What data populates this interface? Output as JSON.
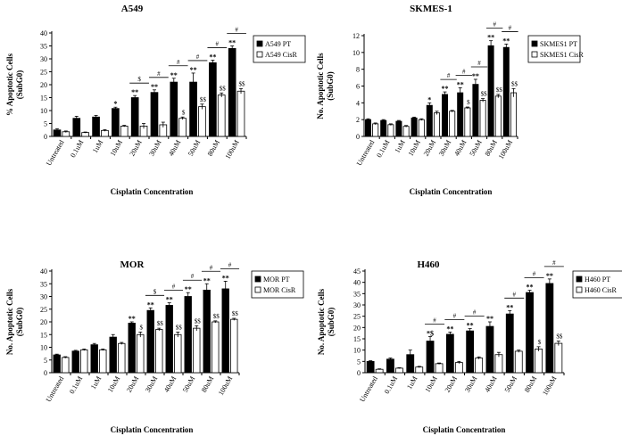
{
  "chart_data": [
    {
      "type": "bar",
      "title": "A549",
      "xlabel": "Cisplatin Concentration",
      "ylabel": "% Apoptotic Cells (SubG0)",
      "ylim": [
        0,
        40
      ],
      "yticks": [
        0,
        5,
        10,
        15,
        20,
        25,
        30,
        35,
        40
      ],
      "categories": [
        "Untreated",
        "0.1uM",
        "1uM",
        "10uM",
        "20uM",
        "30uM",
        "40uM",
        "50uM",
        "80uM",
        "100uM"
      ],
      "series": [
        {
          "name": "A549 PT",
          "color": "#000000",
          "values": [
            2.5,
            7,
            7.5,
            10.8,
            15,
            17,
            21,
            21,
            28.5,
            34
          ],
          "errors": [
            0.5,
            0.8,
            0.6,
            0.5,
            0.8,
            1,
            1.5,
            3.5,
            1,
            1
          ]
        },
        {
          "name": "A549 CisR",
          "color": "#ffffff",
          "values": [
            1.8,
            1.5,
            2.3,
            4,
            4,
            4.5,
            7,
            11.5,
            16,
            17.5
          ],
          "errors": [
            0.3,
            0.2,
            0.3,
            0.3,
            1,
            1,
            0.5,
            1,
            0.8,
            1
          ]
        }
      ],
      "annotations": [
        {
          "category": "10uM",
          "above_pt": [
            "*"
          ],
          "above_cisr": [],
          "hash": false
        },
        {
          "category": "20uM",
          "above_pt": [
            "**"
          ],
          "above_cisr": [],
          "hash": true,
          "hash_symbol": "$"
        },
        {
          "category": "30uM",
          "above_pt": [
            "**"
          ],
          "above_cisr": [],
          "hash": true,
          "hash_symbol": "#"
        },
        {
          "category": "40uM",
          "above_pt": [
            "**"
          ],
          "above_cisr": [
            "$"
          ],
          "hash": true,
          "hash_symbol": "#"
        },
        {
          "category": "50uM",
          "above_pt": [
            "**"
          ],
          "above_cisr": [
            "$$"
          ],
          "hash": true,
          "hash_symbol": "#"
        },
        {
          "category": "80uM",
          "above_pt": [
            "**"
          ],
          "above_cisr": [
            "$$"
          ],
          "hash": true,
          "hash_symbol": "#"
        },
        {
          "category": "100uM",
          "above_pt": [
            "**"
          ],
          "above_cisr": [
            "$$"
          ],
          "hash": true,
          "hash_symbol": "#"
        }
      ]
    },
    {
      "type": "bar",
      "title": "SKMES-1",
      "xlabel": "Cisplatin Concentration",
      "ylabel": "No. Apoptotic Cells (SubG0)",
      "ylim": [
        0,
        12
      ],
      "yticks": [
        0,
        2,
        4,
        6,
        8,
        10,
        12
      ],
      "categories": [
        "Untreated",
        "0.1uM",
        "1uM",
        "10uM",
        "20uM",
        "30uM",
        "40uM",
        "50uM",
        "80uM",
        "100uM"
      ],
      "series": [
        {
          "name": "SKMES1 PT",
          "color": "#000000",
          "values": [
            2,
            1.9,
            1.8,
            2.2,
            3.7,
            5,
            5.2,
            6.2,
            10.8,
            10.6
          ],
          "errors": [
            0.1,
            0.1,
            0.1,
            0.1,
            0.3,
            0.3,
            0.6,
            0.6,
            0.6,
            0.4
          ]
        },
        {
          "name": "SKMES1 CisR",
          "color": "#ffffff",
          "values": [
            1.5,
            1.4,
            1.2,
            2,
            2.8,
            3,
            3.4,
            4.3,
            4.8,
            5.2
          ],
          "errors": [
            0.1,
            0.1,
            0.1,
            0.1,
            0.2,
            0.1,
            0.1,
            0.2,
            0.2,
            0.5
          ]
        }
      ],
      "annotations": [
        {
          "category": "20uM",
          "above_pt": [
            "*"
          ],
          "above_cisr": [],
          "hash": false
        },
        {
          "category": "30uM",
          "above_pt": [
            "**"
          ],
          "above_cisr": [],
          "hash": true,
          "hash_symbol": "#"
        },
        {
          "category": "40uM",
          "above_pt": [
            "**"
          ],
          "above_cisr": [
            "$"
          ],
          "hash": true,
          "hash_symbol": "#"
        },
        {
          "category": "50uM",
          "above_pt": [
            "**"
          ],
          "above_cisr": [
            "$$"
          ],
          "hash": true,
          "hash_symbol": "#"
        },
        {
          "category": "80uM",
          "above_pt": [
            "**"
          ],
          "above_cisr": [
            "$$"
          ],
          "hash": true,
          "hash_symbol": "#"
        },
        {
          "category": "100uM",
          "above_pt": [
            "**"
          ],
          "above_cisr": [
            "$$"
          ],
          "hash": true,
          "hash_symbol": "#"
        }
      ]
    },
    {
      "type": "bar",
      "title": "MOR",
      "xlabel": "Cisplatin Concentration",
      "ylabel": "No. Apoptotic Cells (SubG0)",
      "ylim": [
        0,
        40
      ],
      "yticks": [
        0,
        5,
        10,
        15,
        20,
        25,
        30,
        35,
        40
      ],
      "categories": [
        "Untreated",
        "0.1uM",
        "1uM",
        "10uM",
        "20uM",
        "30uM",
        "40uM",
        "50uM",
        "80uM",
        "100uM"
      ],
      "series": [
        {
          "name": "MOR PT",
          "color": "#000000",
          "values": [
            7,
            8.5,
            11,
            14,
            19.5,
            24.5,
            26.5,
            30,
            32.5,
            33
          ],
          "errors": [
            0.3,
            0.3,
            0.5,
            1,
            0.5,
            1,
            1,
            1.5,
            2.5,
            3
          ]
        },
        {
          "name": "MOR CisR",
          "color": "#ffffff",
          "values": [
            6,
            9,
            9,
            11.5,
            15,
            17,
            15,
            17.5,
            20,
            21
          ],
          "errors": [
            0.3,
            0.3,
            0.3,
            0.4,
            1,
            0.5,
            1,
            1,
            0.4,
            0.4
          ]
        }
      ],
      "annotations": [
        {
          "category": "20uM",
          "above_pt": [
            "**"
          ],
          "above_cisr": [
            "$"
          ],
          "hash": false
        },
        {
          "category": "30uM",
          "above_pt": [
            "**"
          ],
          "above_cisr": [
            "$$"
          ],
          "hash": true,
          "hash_symbol": "$"
        },
        {
          "category": "40uM",
          "above_pt": [
            "**"
          ],
          "above_cisr": [
            "$$"
          ],
          "hash": true,
          "hash_symbol": "#"
        },
        {
          "category": "50uM",
          "above_pt": [
            "**"
          ],
          "above_cisr": [
            "$$"
          ],
          "hash": true,
          "hash_symbol": "#"
        },
        {
          "category": "80uM",
          "above_pt": [
            "**"
          ],
          "above_cisr": [
            "$$"
          ],
          "hash": true,
          "hash_symbol": "#"
        },
        {
          "category": "100uM",
          "above_pt": [
            "**"
          ],
          "above_cisr": [
            "$$"
          ],
          "hash": true,
          "hash_symbol": "#"
        }
      ]
    },
    {
      "type": "bar",
      "title": "H460",
      "xlabel": "Cisplatin Concentration",
      "ylabel": "No. Apoptotic Cells (SubG0)",
      "ylim": [
        0,
        45
      ],
      "yticks": [
        0,
        5,
        10,
        15,
        20,
        25,
        30,
        35,
        40,
        45
      ],
      "categories": [
        "Untreated",
        "0.1uM",
        "1uM",
        "10uM",
        "20uM",
        "30uM",
        "40uM",
        "50uM",
        "80uM",
        "100uM"
      ],
      "series": [
        {
          "name": "H460 PT",
          "color": "#000000",
          "values": [
            5,
            6,
            8,
            14,
            17,
            18.5,
            20.5,
            26,
            35.5,
            39.5
          ],
          "errors": [
            0.3,
            0.5,
            2,
            2,
            1,
            1,
            2,
            1.5,
            1,
            2
          ]
        },
        {
          "name": "H460 CisR",
          "color": "#ffffff",
          "values": [
            1.5,
            2,
            2.5,
            4,
            4.5,
            6.5,
            8,
            9.5,
            10.5,
            13
          ],
          "errors": [
            0.2,
            0.2,
            0.3,
            0.3,
            0.5,
            0.5,
            1,
            0.5,
            1,
            1
          ]
        }
      ],
      "annotations": [
        {
          "category": "10uM",
          "above_pt": [
            "*$"
          ],
          "above_cisr": [],
          "hash": true,
          "hash_symbol": "#"
        },
        {
          "category": "20uM",
          "above_pt": [
            "**"
          ],
          "above_cisr": [],
          "hash": true,
          "hash_symbol": "#"
        },
        {
          "category": "30uM",
          "above_pt": [
            "**"
          ],
          "above_cisr": [],
          "hash": true,
          "hash_symbol": "#"
        },
        {
          "category": "40uM",
          "above_pt": [
            "**"
          ],
          "above_cisr": [],
          "hash": false
        },
        {
          "category": "50uM",
          "above_pt": [
            "**"
          ],
          "above_cisr": [],
          "hash": true,
          "hash_symbol": "#"
        },
        {
          "category": "80uM",
          "above_pt": [
            "**"
          ],
          "above_cisr": [
            "$"
          ],
          "hash": true,
          "hash_symbol": "#"
        },
        {
          "category": "100uM",
          "above_pt": [
            "**"
          ],
          "above_cisr": [
            "$$"
          ],
          "hash": true,
          "hash_symbol": "#"
        }
      ]
    }
  ]
}
